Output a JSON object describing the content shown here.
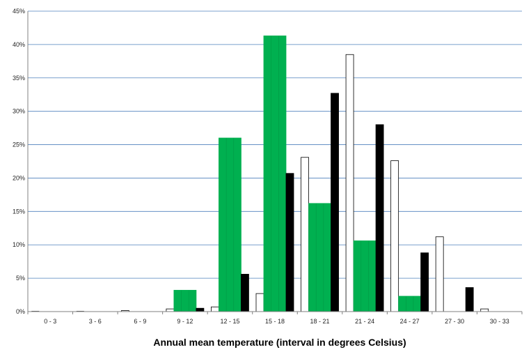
{
  "chart_data": {
    "type": "bar",
    "xlabel": "Annual mean temperature (interval in degrees Celsius)",
    "ylabel": "",
    "ylim": [
      0,
      45
    ],
    "yticks": [
      0,
      5,
      10,
      15,
      20,
      25,
      30,
      35,
      40,
      45
    ],
    "ytick_format": "%",
    "grid": true,
    "legend": "none",
    "categories": [
      "0 - 3",
      "3 - 6",
      "6 - 9",
      "9 - 12",
      "12 - 15",
      "15 - 18",
      "18 - 21",
      "21 - 24",
      "24 - 27",
      "27 - 30",
      "30 - 33"
    ],
    "series": [
      {
        "color": "#ffffff",
        "stroke": "#000000",
        "values": [
          0,
          0,
          0.15,
          0.4,
          0.7,
          2.7,
          23.1,
          38.5,
          22.6,
          11.2,
          0.4
        ]
      },
      {
        "color": "#00b050",
        "stroke": "#00b050",
        "values": [
          0,
          0,
          0,
          3.2,
          26.0,
          41.3,
          16.2,
          10.6,
          2.3,
          0,
          0
        ]
      },
      {
        "color": "#000000",
        "stroke": "#000000",
        "values": [
          0,
          0,
          0,
          0.5,
          5.6,
          20.7,
          32.7,
          28.0,
          8.8,
          3.6,
          0
        ]
      }
    ]
  }
}
